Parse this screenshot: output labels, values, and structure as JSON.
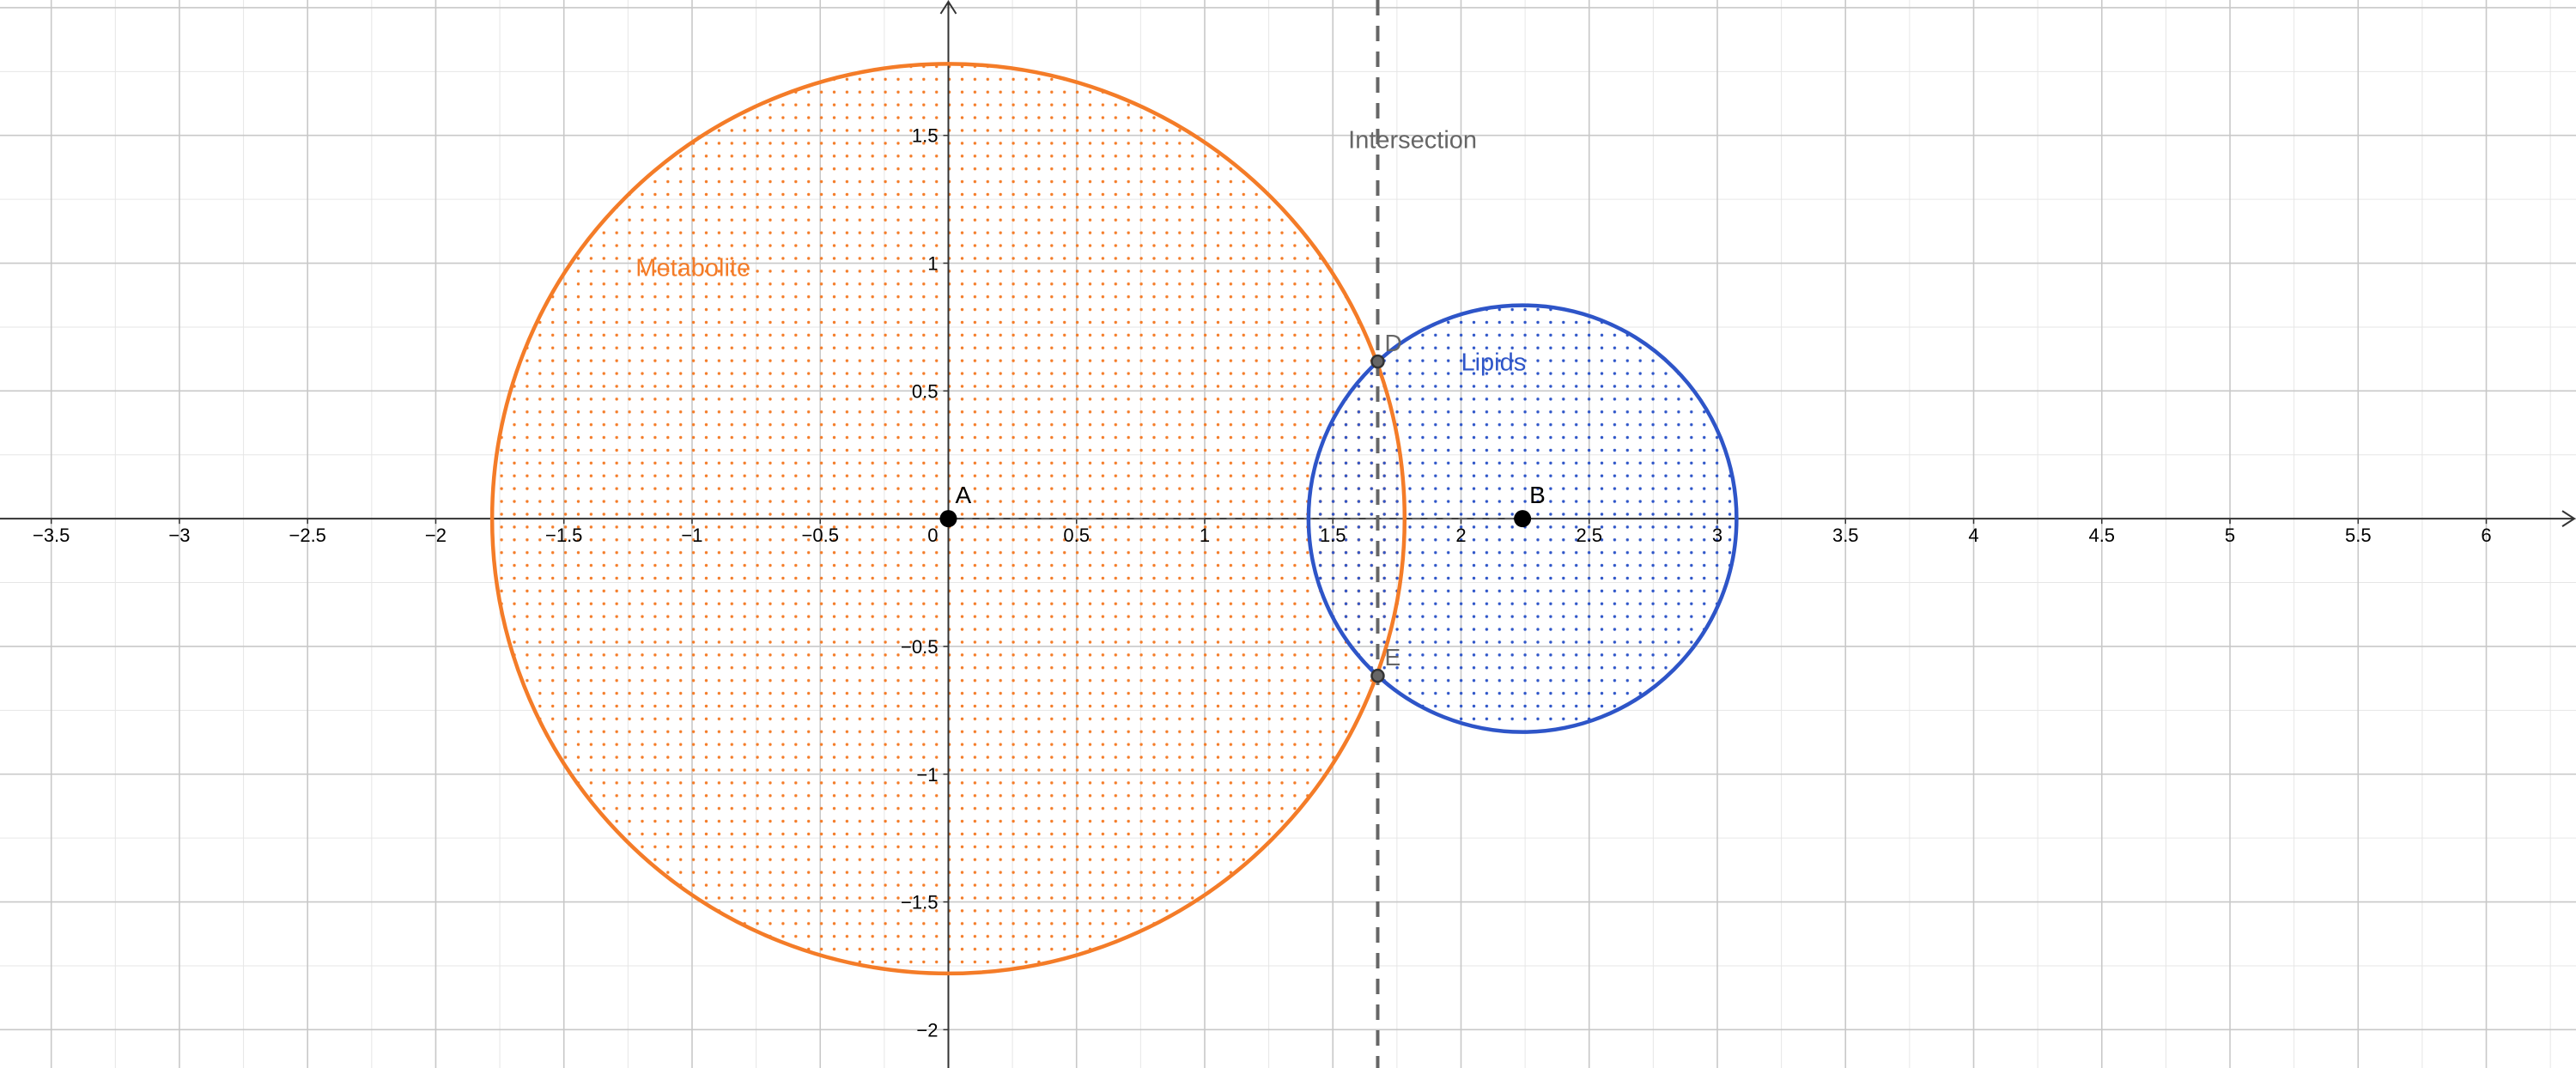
{
  "axes": {
    "x_range": [
      -3.7,
      6.35
    ],
    "y_range": [
      -2.15,
      2.03
    ],
    "x_ticks": [
      -3.5,
      -3,
      -2.5,
      -2,
      -1.5,
      -1,
      -0.5,
      0.5,
      1,
      1.5,
      2,
      2.5,
      3,
      3.5,
      4,
      4.5,
      5,
      5.5,
      6
    ],
    "y_ticks": [
      -2,
      -1.5,
      -1,
      -0.5,
      0.5,
      1,
      1.5
    ],
    "origin_label": "0",
    "grid": true,
    "grid_major_step": 0.5,
    "grid_minor_step": 0.25
  },
  "colors": {
    "metabolite": "#f47c28",
    "lipids": "#2e55c8",
    "intersection_line": "#666666",
    "grid_major": "#c8c8c8",
    "grid_minor": "#e6e6e6",
    "axis": "#333333",
    "point_fill": "#000000",
    "intersection_point_fill": "#666666"
  },
  "circles": [
    {
      "id": "metabolite",
      "label": "Metabolite",
      "center": [
        0,
        0
      ],
      "radius": 1.78,
      "label_at": [
        -1.22,
        0.95
      ]
    },
    {
      "id": "lipids",
      "label": "Lipids",
      "center": [
        2.24,
        0
      ],
      "radius": 0.835,
      "label_at": [
        2.0,
        0.58
      ]
    }
  ],
  "points": [
    {
      "name": "A",
      "x": 0,
      "y": 0,
      "kind": "center"
    },
    {
      "name": "B",
      "x": 2.24,
      "y": 0,
      "kind": "center"
    },
    {
      "name": "D",
      "x": 1.675,
      "y": 0.615,
      "kind": "intersection"
    },
    {
      "name": "E",
      "x": 1.675,
      "y": -0.615,
      "kind": "intersection"
    }
  ],
  "segment_AB": {
    "from": "A",
    "to": "B",
    "style": "dashed"
  },
  "intersection_line": {
    "label": "Intersection",
    "x": 1.675,
    "style": "dashed",
    "label_at": [
      1.56,
      1.45
    ]
  }
}
